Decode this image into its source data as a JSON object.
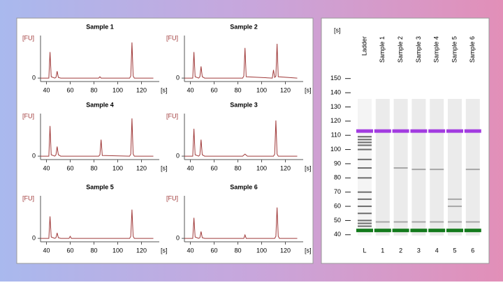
{
  "chart_data": [
    {
      "type": "line",
      "title": "Sample 1",
      "x_label": "[s]",
      "y_label": "[FU]",
      "color": "#a03a3a",
      "xlim": [
        35,
        135
      ],
      "ylim": [
        -5,
        58
      ],
      "xticks": [
        40,
        60,
        80,
        100,
        120
      ],
      "yticks": [
        0
      ],
      "x": [
        35,
        42,
        43,
        44,
        47,
        48,
        49,
        50,
        52,
        60,
        84,
        85,
        86,
        110,
        111,
        112,
        113,
        114,
        130
      ],
      "values": [
        0,
        0,
        38,
        2,
        0,
        1,
        10,
        1,
        0,
        0,
        0,
        2,
        0,
        0,
        3,
        52,
        3,
        0,
        0
      ]
    },
    {
      "type": "line",
      "title": "Sample 2",
      "x_label": "[s]",
      "y_label": "[FU]",
      "color": "#a03a3a",
      "xlim": [
        35,
        135
      ],
      "ylim": [
        -5,
        58
      ],
      "xticks": [
        40,
        60,
        80,
        100,
        120
      ],
      "yticks": [
        0
      ],
      "x": [
        35,
        42,
        43,
        44,
        47,
        48,
        49,
        50,
        52,
        84,
        85,
        86,
        87,
        109,
        110,
        111,
        112,
        113,
        114,
        130
      ],
      "values": [
        0,
        0,
        38,
        2,
        0,
        2,
        17,
        2,
        0,
        0,
        3,
        44,
        2,
        0,
        12,
        1,
        3,
        50,
        2,
        0
      ]
    },
    {
      "type": "line",
      "title": "Sample 4",
      "x_label": "[s]",
      "y_label": "[FU]",
      "color": "#a03a3a",
      "xlim": [
        35,
        135
      ],
      "ylim": [
        -5,
        58
      ],
      "xticks": [
        40,
        60,
        80,
        100,
        120
      ],
      "yticks": [
        0
      ],
      "x": [
        35,
        42,
        43,
        44,
        47,
        48,
        49,
        50,
        52,
        84,
        85,
        86,
        87,
        110,
        111,
        112,
        113,
        114,
        130
      ],
      "values": [
        0,
        0,
        44,
        2,
        0,
        2,
        14,
        2,
        0,
        0,
        2,
        24,
        1,
        0,
        3,
        55,
        3,
        0,
        0
      ]
    },
    {
      "type": "line",
      "title": "Sample 3",
      "x_label": "[s]",
      "y_label": "[FU]",
      "color": "#a03a3a",
      "xlim": [
        35,
        135
      ],
      "ylim": [
        -5,
        58
      ],
      "xticks": [
        40,
        60,
        80,
        100,
        120
      ],
      "yticks": [
        0
      ],
      "x": [
        35,
        42,
        43,
        44,
        47,
        48,
        49,
        50,
        52,
        84,
        86,
        88,
        110,
        111,
        112,
        113,
        114,
        130
      ],
      "values": [
        0,
        0,
        40,
        2,
        0,
        2,
        24,
        2,
        0,
        0,
        3,
        0,
        0,
        3,
        52,
        3,
        0,
        0
      ]
    },
    {
      "type": "line",
      "title": "Sample 5",
      "x_label": "[s]",
      "y_label": "[FU]",
      "color": "#a03a3a",
      "xlim": [
        35,
        135
      ],
      "ylim": [
        -5,
        58
      ],
      "xticks": [
        40,
        60,
        80,
        100,
        120
      ],
      "yticks": [
        0
      ],
      "x": [
        35,
        42,
        43,
        44,
        47,
        48,
        49,
        50,
        52,
        59,
        60,
        61,
        110,
        111,
        112,
        113,
        114,
        130
      ],
      "values": [
        0,
        0,
        32,
        2,
        0,
        1,
        8,
        1,
        0,
        0,
        3,
        0,
        0,
        3,
        42,
        3,
        0,
        0
      ]
    },
    {
      "type": "line",
      "title": "Sample 6",
      "x_label": "[s]",
      "y_label": "[FU]",
      "color": "#a03a3a",
      "xlim": [
        35,
        135
      ],
      "ylim": [
        -5,
        58
      ],
      "xticks": [
        40,
        60,
        80,
        100,
        120
      ],
      "yticks": [
        0
      ],
      "x": [
        35,
        42,
        43,
        44,
        47,
        48,
        49,
        50,
        52,
        85,
        86,
        87,
        111,
        112,
        113,
        114,
        115,
        130
      ],
      "values": [
        0,
        0,
        30,
        2,
        0,
        1,
        10,
        1,
        0,
        0,
        5,
        0,
        0,
        3,
        45,
        3,
        0,
        0
      ]
    },
    {
      "type": "gel",
      "y_label": "[s]",
      "categories": [
        "Ladder",
        "Sample 1",
        "Sample 2",
        "Sample 3",
        "Sample 4",
        "Sample 5",
        "Sample 6"
      ],
      "lane_labels": [
        "L",
        "1",
        "2",
        "3",
        "4",
        "5",
        "6"
      ],
      "ylim": [
        35,
        155
      ],
      "yticks": [
        40,
        50,
        60,
        70,
        80,
        90,
        100,
        110,
        120,
        130,
        140,
        150
      ],
      "band_color": "#555555",
      "bands": [
        [
          46,
          48,
          50,
          55,
          60,
          65,
          70,
          80,
          87,
          93,
          100,
          103,
          105,
          107,
          109
        ],
        [
          49
        ],
        [
          87,
          49
        ],
        [
          86,
          49
        ],
        [
          86,
          49
        ],
        [
          49,
          60,
          65
        ],
        [
          86,
          49
        ]
      ],
      "markers": [
        {
          "value": 113,
          "color": "#a23be0"
        },
        {
          "value": 43,
          "color": "#137a1c"
        }
      ]
    }
  ]
}
